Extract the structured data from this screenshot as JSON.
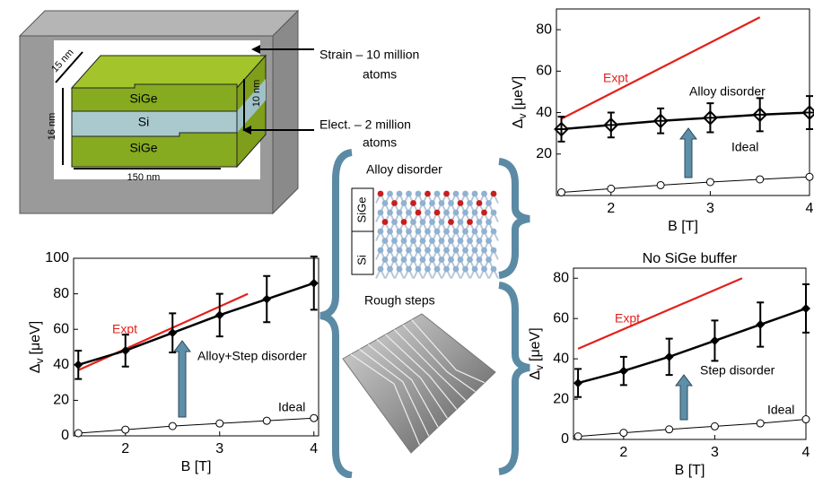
{
  "chart_data": [
    {
      "type": "line",
      "xlabel": "B [T]",
      "ylabel": "Δ",
      "ylabel_sub": "v",
      "ylabel_unit": "[μeV]",
      "xlim": [
        1.45,
        4
      ],
      "ylim": [
        0,
        90
      ],
      "xticks": [
        2,
        3,
        4
      ],
      "yticks": [
        20,
        40,
        60,
        80
      ],
      "series": [
        {
          "name": "Expt",
          "color": "#e3201b",
          "marker": "none",
          "x": [
            1.5,
            3.5
          ],
          "values": [
            37,
            86
          ]
        },
        {
          "name": "Alloy disorder",
          "color": "#000000",
          "marker": "diamond-cross",
          "x": [
            1.5,
            2,
            2.5,
            3,
            3.5,
            4
          ],
          "values": [
            32,
            34,
            36,
            37.5,
            39,
            40
          ],
          "errors": [
            6,
            6,
            6,
            7,
            8,
            8
          ]
        },
        {
          "name": "Ideal",
          "color": "#000000",
          "marker": "circle",
          "x": [
            1.5,
            2,
            2.5,
            3,
            3.5,
            4
          ],
          "values": [
            1.5,
            3.3,
            5,
            6.5,
            7.8,
            9
          ]
        }
      ]
    },
    {
      "type": "line",
      "xlabel": "B [T]",
      "ylabel": "Δ",
      "ylabel_sub": "v",
      "ylabel_unit": "[μeV]",
      "xlim": [
        1.45,
        4.05
      ],
      "ylim": [
        0,
        100
      ],
      "xticks": [
        2,
        3,
        4
      ],
      "yticks": [
        0,
        20,
        40,
        60,
        80,
        100
      ],
      "series": [
        {
          "name": "Expt",
          "color": "#e3201b",
          "marker": "none",
          "x": [
            1.5,
            3.3
          ],
          "values": [
            37,
            80
          ]
        },
        {
          "name": "Alloy+Step disorder",
          "color": "#000000",
          "marker": "diamond",
          "x": [
            1.5,
            2,
            2.5,
            3,
            3.5,
            4
          ],
          "values": [
            40,
            48,
            58,
            68,
            77,
            86
          ],
          "errors": [
            8,
            9,
            11,
            12,
            13,
            15
          ]
        },
        {
          "name": "Ideal",
          "color": "#000000",
          "marker": "circle",
          "x": [
            1.5,
            2,
            2.5,
            3,
            3.5,
            4
          ],
          "values": [
            1.5,
            3.5,
            5.5,
            7,
            8.5,
            10
          ]
        }
      ]
    },
    {
      "type": "line",
      "title": "No SiGe buffer",
      "xlabel": "B [T]",
      "ylabel": "Δ",
      "ylabel_sub": "v",
      "ylabel_unit": "[μeV]",
      "xlim": [
        1.45,
        4
      ],
      "ylim": [
        0,
        85
      ],
      "xticks": [
        2,
        3,
        4
      ],
      "yticks": [
        0,
        20,
        40,
        60,
        80
      ],
      "series": [
        {
          "name": "Expt",
          "color": "#e3201b",
          "marker": "none",
          "x": [
            1.5,
            3.3
          ],
          "values": [
            45,
            80
          ]
        },
        {
          "name": "Step disorder",
          "color": "#000000",
          "marker": "diamond",
          "x": [
            1.5,
            2,
            2.5,
            3,
            3.5,
            4
          ],
          "values": [
            28,
            34,
            41,
            49,
            57,
            65
          ],
          "errors": [
            7,
            7,
            9,
            10,
            11,
            12
          ]
        },
        {
          "name": "Ideal",
          "color": "#000000",
          "marker": "circle",
          "x": [
            1.5,
            2,
            2.5,
            3,
            3.5,
            4
          ],
          "values": [
            1.5,
            3.3,
            5,
            6.5,
            8,
            10
          ]
        }
      ]
    }
  ],
  "diagram": {
    "width_top": "15 nm",
    "layer_top": "SiGe",
    "layer_mid": "Si",
    "layer_bot": "SiGe",
    "height": "16 nm",
    "well": "10 nm",
    "length": "150 nm",
    "strain": [
      "Strain – 10 million",
      "atoms"
    ],
    "elect": [
      "Elect. – 2 million",
      "atoms"
    ]
  },
  "insets": {
    "alloy": {
      "title": "Alloy disorder",
      "layers": [
        "SiGe",
        "Si"
      ]
    },
    "steps": {
      "title": "Rough steps"
    }
  }
}
